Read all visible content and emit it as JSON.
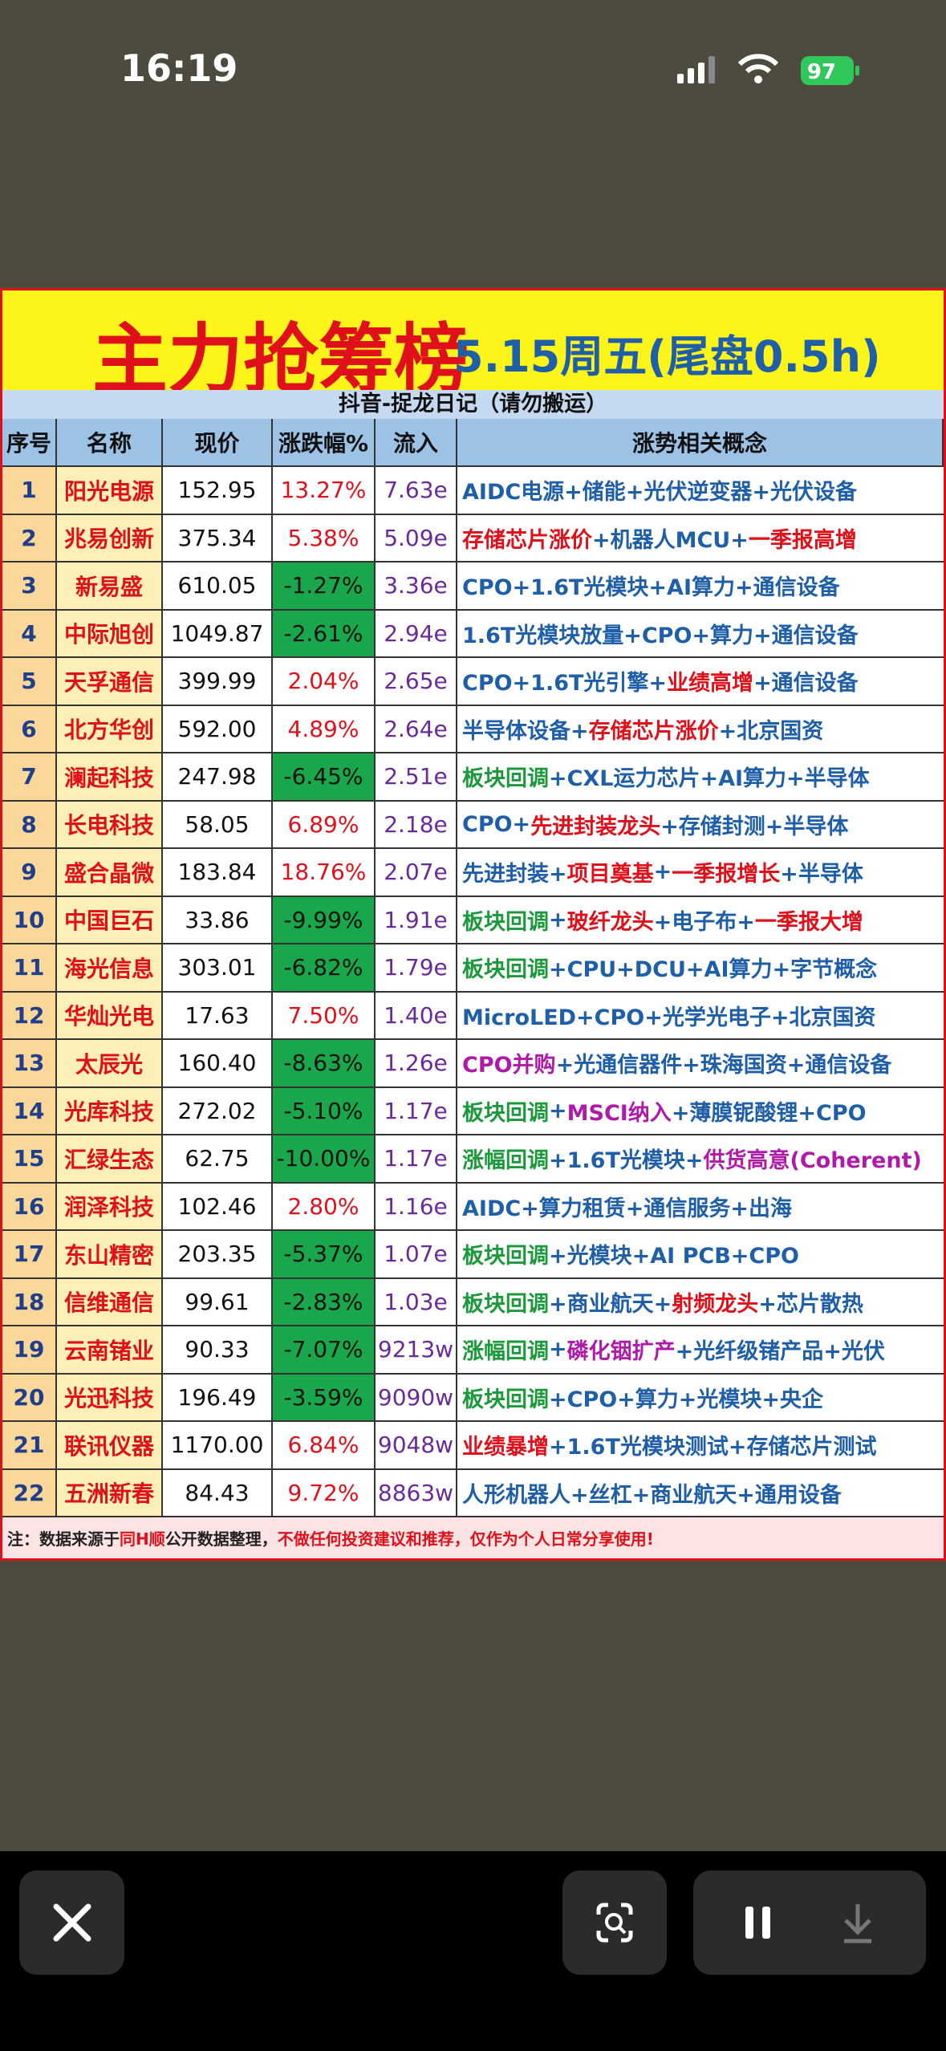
{
  "status_bar": {
    "time": "16:19",
    "battery": "97"
  },
  "header": {
    "title": "主力抢筹榜",
    "subtitle": "5.15周五(尾盘0.5h)",
    "source": "抖音-捉龙日记（请勿搬运）"
  },
  "table": {
    "columns": [
      "序号",
      "名称",
      "现价",
      "涨跌幅%",
      "流入",
      "涨势相关概念"
    ],
    "rows": [
      [
        "1",
        "阳光电源",
        "152.95",
        "13.27%",
        "7.63e",
        [
          {
            "text": "AIDC电源+储能+光伏逆变器+光伏设备",
            "color": "#1f5fa8"
          }
        ]
      ],
      [
        "2",
        "兆易创新",
        "375.34",
        "5.38%",
        "5.09e",
        [
          {
            "text": "存储芯片涨价",
            "color": "#e0101a"
          },
          {
            "text": "+机器人MCU+",
            "color": "#1f5fa8"
          },
          {
            "text": "一季报高增",
            "color": "#e0101a"
          }
        ]
      ],
      [
        "3",
        "新易盛",
        "610.05",
        "-1.27%",
        "3.36e",
        [
          {
            "text": "CPO+1.6T光模块+AI算力+通信设备",
            "color": "#1f5fa8"
          }
        ]
      ],
      [
        "4",
        "中际旭创",
        "1049.87",
        "-2.61%",
        "2.94e",
        [
          {
            "text": "1.6T光模块放量+CPO+算力+通信设备",
            "color": "#1f5fa8"
          }
        ]
      ],
      [
        "5",
        "天孚通信",
        "399.99",
        "2.04%",
        "2.65e",
        [
          {
            "text": "CPO+1.6T光引擎+",
            "color": "#1f5fa8"
          },
          {
            "text": "业绩高增",
            "color": "#e0101a"
          },
          {
            "text": "+通信设备",
            "color": "#1f5fa8"
          }
        ]
      ],
      [
        "6",
        "北方华创",
        "592.00",
        "4.89%",
        "2.64e",
        [
          {
            "text": "半导体设备+",
            "color": "#1f5fa8"
          },
          {
            "text": "存储芯片涨价",
            "color": "#e0101a"
          },
          {
            "text": "+北京国资",
            "color": "#1f5fa8"
          }
        ]
      ],
      [
        "7",
        "澜起科技",
        "247.98",
        "-6.45%",
        "2.51e",
        [
          {
            "text": "板块回调",
            "color": "#1a9a3a"
          },
          {
            "text": "+CXL运力芯片+AI算力+半导体",
            "color": "#1f5fa8"
          }
        ]
      ],
      [
        "8",
        "长电科技",
        "58.05",
        "6.89%",
        "2.18e",
        [
          {
            "text": "CPO+",
            "color": "#1f5fa8"
          },
          {
            "text": "先进封装龙头",
            "color": "#e0101a"
          },
          {
            "text": "+存储封测+半导体",
            "color": "#1f5fa8"
          }
        ]
      ],
      [
        "9",
        "盛合晶微",
        "183.84",
        "18.76%",
        "2.07e",
        [
          {
            "text": "先进封装+",
            "color": "#1f5fa8"
          },
          {
            "text": "项目奠基",
            "color": "#e0101a"
          },
          {
            "text": "+",
            "color": "#1f5fa8"
          },
          {
            "text": "一季报增长",
            "color": "#e0101a"
          },
          {
            "text": "+半导体",
            "color": "#1f5fa8"
          }
        ]
      ],
      [
        "10",
        "中国巨石",
        "33.86",
        "-9.99%",
        "1.91e",
        [
          {
            "text": "板块回调",
            "color": "#1a9a3a"
          },
          {
            "text": "+",
            "color": "#1f5fa8"
          },
          {
            "text": "玻纤龙头",
            "color": "#e0101a"
          },
          {
            "text": "+电子布+",
            "color": "#1f5fa8"
          },
          {
            "text": "一季报大增",
            "color": "#e0101a"
          }
        ]
      ],
      [
        "11",
        "海光信息",
        "303.01",
        "-6.82%",
        "1.79e",
        [
          {
            "text": "板块回调",
            "color": "#1a9a3a"
          },
          {
            "text": "+CPU+DCU+AI算力+字节概念",
            "color": "#1f5fa8"
          }
        ]
      ],
      [
        "12",
        "华灿光电",
        "17.63",
        "7.50%",
        "1.40e",
        [
          {
            "text": "MicroLED+CPO+光学光电子+北京国资",
            "color": "#1f5fa8"
          }
        ]
      ],
      [
        "13",
        "太辰光",
        "160.40",
        "-8.63%",
        "1.26e",
        [
          {
            "text": "CPO并购",
            "color": "#b01aa8"
          },
          {
            "text": "+光通信器件+珠海国资+通信设备",
            "color": "#1f5fa8"
          }
        ]
      ],
      [
        "14",
        "光库科技",
        "272.02",
        "-5.10%",
        "1.17e",
        [
          {
            "text": "板块回调",
            "color": "#1a9a3a"
          },
          {
            "text": "+",
            "color": "#1f5fa8"
          },
          {
            "text": "MSCI纳入",
            "color": "#b01aa8"
          },
          {
            "text": "+薄膜铌酸锂+CPO",
            "color": "#1f5fa8"
          }
        ]
      ],
      [
        "15",
        "汇绿生态",
        "62.75",
        "-10.00%",
        "1.17e",
        [
          {
            "text": "涨幅回调",
            "color": "#1a9a3a"
          },
          {
            "text": "+1.6T光模块+",
            "color": "#1f5fa8"
          },
          {
            "text": "供货高意(Coherent)",
            "color": "#b01aa8"
          }
        ]
      ],
      [
        "16",
        "润泽科技",
        "102.46",
        "2.80%",
        "1.16e",
        [
          {
            "text": "AIDC+算力租赁+通信服务+出海",
            "color": "#1f5fa8"
          }
        ]
      ],
      [
        "17",
        "东山精密",
        "203.35",
        "-5.37%",
        "1.07e",
        [
          {
            "text": "板块回调",
            "color": "#1a9a3a"
          },
          {
            "text": "+光模块+AI PCB+CPO",
            "color": "#1f5fa8"
          }
        ]
      ],
      [
        "18",
        "信维通信",
        "99.61",
        "-2.83%",
        "1.03e",
        [
          {
            "text": "板块回调",
            "color": "#1a9a3a"
          },
          {
            "text": "+商业航天+",
            "color": "#1f5fa8"
          },
          {
            "text": "射频龙头",
            "color": "#e0101a"
          },
          {
            "text": "+芯片散热",
            "color": "#1f5fa8"
          }
        ]
      ],
      [
        "19",
        "云南锗业",
        "90.33",
        "-7.07%",
        "9213w",
        [
          {
            "text": "涨幅回调",
            "color": "#1a9a3a"
          },
          {
            "text": "+",
            "color": "#1f5fa8"
          },
          {
            "text": "磷化铟扩产",
            "color": "#b01aa8"
          },
          {
            "text": "+光纤级锗产品+光伏",
            "color": "#1f5fa8"
          }
        ]
      ],
      [
        "20",
        "光迅科技",
        "196.49",
        "-3.59%",
        "9090w",
        [
          {
            "text": "板块回调",
            "color": "#1a9a3a"
          },
          {
            "text": "+CPO+算力+光模块+央企",
            "color": "#1f5fa8"
          }
        ]
      ],
      [
        "21",
        "联讯仪器",
        "1170.00",
        "6.84%",
        "9048w",
        [
          {
            "text": "业绩暴增",
            "color": "#e0101a"
          },
          {
            "text": "+1.6T光模块测试+存储芯片测试",
            "color": "#1f5fa8"
          }
        ]
      ],
      [
        "22",
        "五洲新春",
        "84.43",
        "9.72%",
        "8863w",
        [
          {
            "text": "人形机器人+丝杠+商业航天+通用设备",
            "color": "#1f5fa8"
          }
        ]
      ]
    ]
  },
  "note": [
    {
      "text": "注：数据来源于",
      "color": "#222222"
    },
    {
      "text": "同H顺",
      "color": "#e0101a"
    },
    {
      "text": "公开数据整理，",
      "color": "#222222"
    },
    {
      "text": "不做任何投资建议和推荐，仅作为个人日常分享使用!",
      "color": "#e0101a"
    }
  ]
}
